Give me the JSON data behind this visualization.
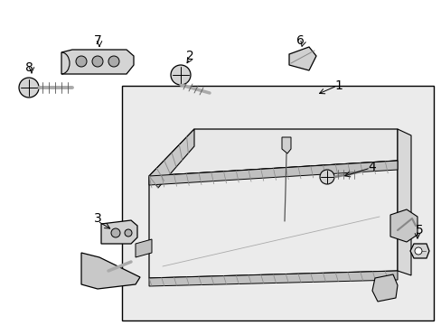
{
  "bg_color": "#ffffff",
  "lc": "#000000",
  "fig_w": 4.89,
  "fig_h": 3.6,
  "dpi": 100,
  "box_fill": "#ebebeb",
  "part_fill": "#e0e0e0",
  "dark_fill": "#b8b8b8",
  "stripe_fill": "#c0c0c0"
}
